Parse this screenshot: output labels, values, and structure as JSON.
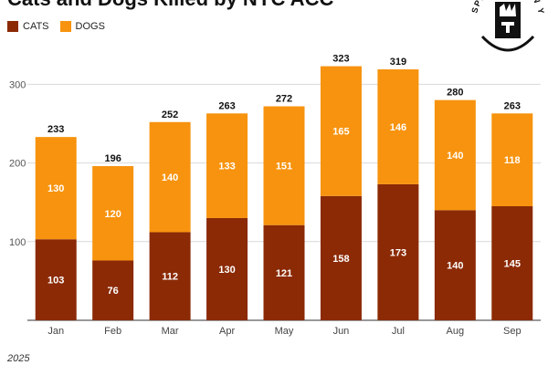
{
  "chart_data": {
    "type": "bar",
    "stacked": true,
    "title": "Cats and Dogs Killed by NYC ACC",
    "categories": [
      "Jan",
      "Feb",
      "Mar",
      "Apr",
      "May",
      "Jun",
      "Jul",
      "Aug",
      "Sep"
    ],
    "series": [
      {
        "name": "CATS",
        "color": "#8b2a05",
        "values": [
          103,
          76,
          112,
          130,
          121,
          158,
          173,
          140,
          145
        ]
      },
      {
        "name": "DOGS",
        "color": "#f7930e",
        "values": [
          130,
          120,
          140,
          133,
          151,
          165,
          146,
          140,
          118
        ]
      }
    ],
    "totals": [
      233,
      196,
      252,
      263,
      272,
      323,
      319,
      280,
      263
    ],
    "yticks": [
      100,
      200,
      300
    ],
    "ylim": [
      0,
      340
    ],
    "grid": true,
    "legend_position": "top-left",
    "xlabel": "",
    "ylabel": ""
  },
  "logo": {
    "text": "THE SPIRIT OF NEW YORK",
    "icon": "stamp-logo-icon"
  },
  "footnote": "2025"
}
